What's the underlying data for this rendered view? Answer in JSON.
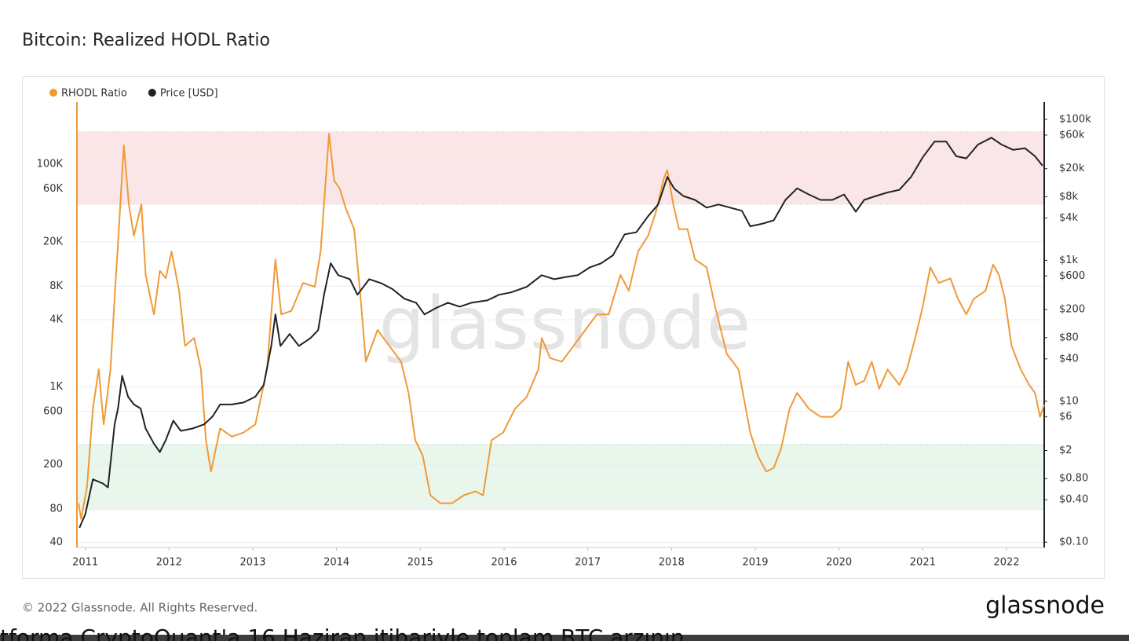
{
  "chart_data": {
    "type": "line",
    "title": "Bitcoin: Realized HODL Ratio",
    "watermark": "glassnode",
    "footer": "© 2022 Glassnode. All Rights Reserved.",
    "logo": "glassnode",
    "caption": "tforma CryptoQuant'a 16 Haziran itibariyle toplam BTC arzının",
    "log_y": true,
    "log_y2": true,
    "grid": true,
    "legend": "top-left",
    "xlim": [
      2010.9,
      2022.45
    ],
    "xticks": [
      2011,
      2012,
      2013,
      2014,
      2015,
      2016,
      2017,
      2018,
      2019,
      2020,
      2021,
      2022
    ],
    "ylim": [
      36,
      360000
    ],
    "yticks": [
      40,
      80,
      200,
      600,
      {
        "value": 1000,
        "label": "1K"
      },
      {
        "value": 4000,
        "label": "4K"
      },
      {
        "value": 8000,
        "label": "8K"
      },
      {
        "value": 20000,
        "label": "20K"
      },
      {
        "value": 60000,
        "label": "60K"
      },
      {
        "value": 100000,
        "label": "100K"
      }
    ],
    "y2lim": [
      0.084,
      176000
    ],
    "y2ticks": [
      {
        "value": 0.1,
        "label": "$0.10"
      },
      {
        "value": 0.4,
        "label": "$0.40"
      },
      {
        "value": 0.8,
        "label": "$0.80"
      },
      {
        "value": 2,
        "label": "$2"
      },
      {
        "value": 6,
        "label": "$6"
      },
      {
        "value": 10,
        "label": "$10"
      },
      {
        "value": 40,
        "label": "$40"
      },
      {
        "value": 80,
        "label": "$80"
      },
      {
        "value": 200,
        "label": "$200"
      },
      {
        "value": 600,
        "label": "$600"
      },
      {
        "value": 1000,
        "label": "$1k"
      },
      {
        "value": 4000,
        "label": "$4k"
      },
      {
        "value": 8000,
        "label": "$8k"
      },
      {
        "value": 20000,
        "label": "$20k"
      },
      {
        "value": 60000,
        "label": "$60k"
      },
      {
        "value": 100000,
        "label": "$100k"
      }
    ],
    "bands": [
      {
        "from": 43600,
        "to": 195000,
        "color": "#fae6e6"
      },
      {
        "from": 79,
        "to": 305,
        "color": "#e8f6ec"
      }
    ],
    "series": [
      {
        "name": "RHODL Ratio",
        "color": "#f09a36",
        "axis": "y",
        "x": [
          2010.92,
          2010.95,
          2011.02,
          2011.09,
          2011.16,
          2011.22,
          2011.3,
          2011.36,
          2011.39,
          2011.46,
          2011.52,
          2011.58,
          2011.67,
          2011.72,
          2011.82,
          2011.89,
          2011.96,
          2012.03,
          2012.12,
          2012.19,
          2012.3,
          2012.38,
          2012.44,
          2012.5,
          2012.61,
          2012.75,
          2012.89,
          2013.03,
          2013.17,
          2013.27,
          2013.34,
          2013.46,
          2013.6,
          2013.74,
          2013.81,
          2013.91,
          2013.97,
          2014.04,
          2014.11,
          2014.21,
          2014.28,
          2014.35,
          2014.49,
          2014.63,
          2014.77,
          2014.86,
          2014.94,
          2015.03,
          2015.12,
          2015.24,
          2015.38,
          2015.52,
          2015.66,
          2015.75,
          2015.85,
          2015.99,
          2016.13,
          2016.27,
          2016.41,
          2016.45,
          2016.55,
          2016.69,
          2016.83,
          2016.97,
          2017.11,
          2017.25,
          2017.39,
          2017.49,
          2017.6,
          2017.72,
          2017.81,
          2017.91,
          2017.95,
          2018.02,
          2018.09,
          2018.19,
          2018.28,
          2018.42,
          2018.52,
          2018.66,
          2018.8,
          2018.94,
          2019.03,
          2019.13,
          2019.22,
          2019.31,
          2019.41,
          2019.5,
          2019.64,
          2019.78,
          2019.92,
          2020.02,
          2020.11,
          2020.2,
          2020.3,
          2020.39,
          2020.48,
          2020.58,
          2020.72,
          2020.81,
          2020.91,
          2021.0,
          2021.09,
          2021.19,
          2021.33,
          2021.42,
          2021.52,
          2021.61,
          2021.75,
          2021.84,
          2021.91,
          2021.98,
          2022.06,
          2022.17,
          2022.27,
          2022.34,
          2022.4,
          2022.45
        ],
        "values": [
          90,
          65,
          125,
          634,
          1430,
          460,
          1430,
          8560,
          19200,
          147000,
          43500,
          22700,
          43500,
          10100,
          4470,
          11000,
          9400,
          16400,
          7270,
          2330,
          2740,
          1430,
          331,
          173,
          423,
          357,
          388,
          460,
          1430,
          13900,
          4470,
          4800,
          8560,
          7900,
          16400,
          188000,
          71000,
          60000,
          40000,
          26000,
          7270,
          1680,
          3240,
          2330,
          1680,
          880,
          331,
          240,
          106,
          90,
          90,
          106,
          115,
          106,
          331,
          388,
          634,
          809,
          1430,
          2740,
          1810,
          1680,
          2330,
          3240,
          4470,
          4470,
          10100,
          7270,
          16400,
          22700,
          36500,
          75000,
          88000,
          43500,
          26000,
          26000,
          13900,
          11800,
          5250,
          1970,
          1430,
          388,
          240,
          173,
          187,
          282,
          634,
          880,
          634,
          537,
          537,
          634,
          1680,
          1040,
          1130,
          1680,
          960,
          1430,
          1040,
          1430,
          2740,
          5250,
          11800,
          8560,
          9400,
          6170,
          4470,
          6170,
          7270,
          12500,
          10100,
          6170,
          2330,
          1430,
          1040,
          880,
          537,
          690
        ]
      },
      {
        "name": "Price [USD]",
        "color": "#222222",
        "axis": "y2",
        "x": [
          2010.93,
          2011.0,
          2011.09,
          2011.21,
          2011.27,
          2011.35,
          2011.39,
          2011.44,
          2011.51,
          2011.58,
          2011.66,
          2011.72,
          2011.82,
          2011.89,
          2011.96,
          2012.05,
          2012.14,
          2012.28,
          2012.42,
          2012.52,
          2012.61,
          2012.75,
          2012.89,
          2013.03,
          2013.13,
          2013.22,
          2013.27,
          2013.33,
          2013.44,
          2013.55,
          2013.69,
          2013.78,
          2013.85,
          2013.93,
          2014.02,
          2014.16,
          2014.25,
          2014.39,
          2014.53,
          2014.67,
          2014.81,
          2014.95,
          2015.05,
          2015.19,
          2015.33,
          2015.47,
          2015.61,
          2015.8,
          2015.94,
          2016.08,
          2016.27,
          2016.45,
          2016.6,
          2016.74,
          2016.88,
          2017.02,
          2017.16,
          2017.3,
          2017.44,
          2017.58,
          2017.72,
          2017.84,
          2017.95,
          2018.03,
          2018.14,
          2018.28,
          2018.42,
          2018.56,
          2018.7,
          2018.84,
          2018.94,
          2019.08,
          2019.22,
          2019.36,
          2019.5,
          2019.64,
          2019.78,
          2019.92,
          2020.06,
          2020.2,
          2020.3,
          2020.44,
          2020.58,
          2020.72,
          2020.86,
          2021.0,
          2021.14,
          2021.28,
          2021.4,
          2021.52,
          2021.66,
          2021.82,
          2021.94,
          2022.08,
          2022.22,
          2022.34,
          2022.43
        ],
        "values": [
          0.16,
          0.25,
          0.78,
          0.68,
          0.6,
          4.7,
          7.9,
          23,
          11.6,
          9,
          7.9,
          4.1,
          2.5,
          1.9,
          2.8,
          5.3,
          3.8,
          4.1,
          4.7,
          6.1,
          9,
          9,
          9.6,
          11.6,
          17,
          61,
          171,
          61,
          90,
          61,
          79,
          102,
          325,
          908,
          616,
          540,
          325,
          540,
          475,
          390,
          285,
          250,
          171,
          211,
          250,
          220,
          250,
          270,
          325,
          350,
          420,
          616,
          540,
          580,
          616,
          790,
          908,
          1180,
          2340,
          2500,
          4230,
          6200,
          15300,
          10500,
          8200,
          7200,
          5600,
          6200,
          5600,
          5050,
          3040,
          3300,
          3700,
          7200,
          10500,
          8600,
          7200,
          7200,
          8600,
          4900,
          7200,
          8200,
          9200,
          10000,
          15300,
          29000,
          48500,
          48500,
          30000,
          28000,
          44000,
          55000,
          44000,
          37000,
          39000,
          30000,
          22000
        ]
      }
    ]
  }
}
